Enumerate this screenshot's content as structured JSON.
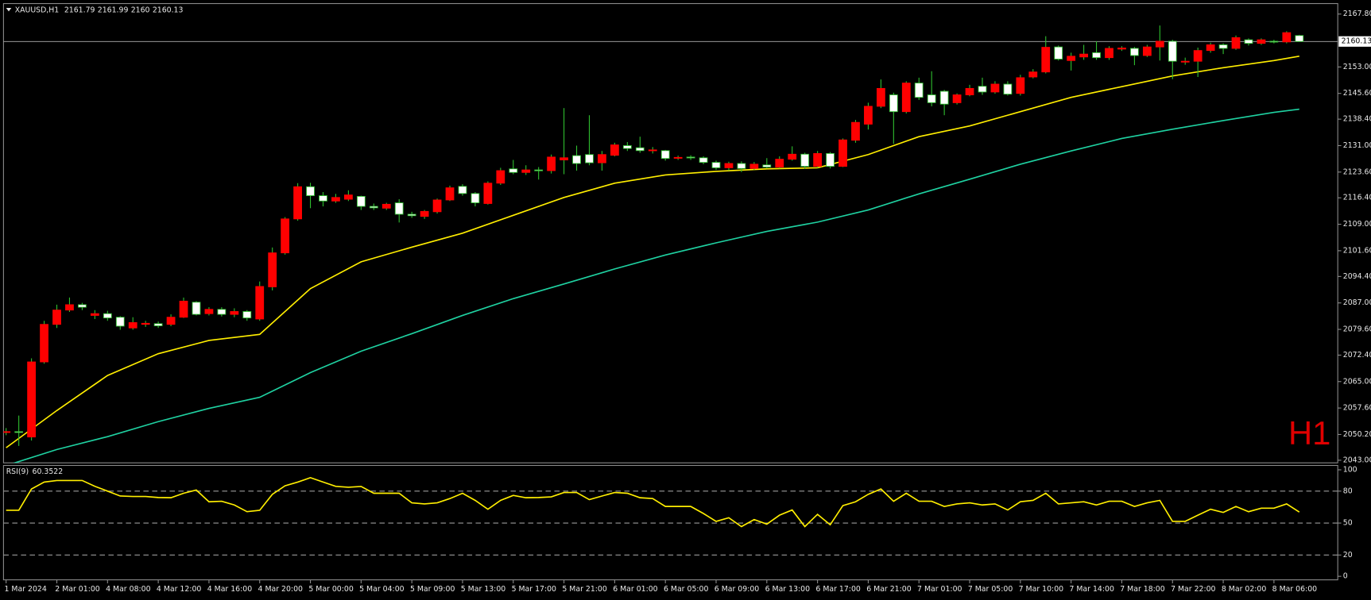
{
  "chart_data": {
    "type": "candlestick",
    "title": "XAUUSD,H1",
    "timeframe_label": "H1",
    "categories": [
      "1 Mar 2024",
      null,
      null,
      null,
      "2 Mar 01:00",
      null,
      null,
      null,
      "4 Mar 08:00",
      null,
      null,
      null,
      "4 Mar 12:00",
      null,
      null,
      null,
      "4 Mar 16:00",
      null,
      null,
      null,
      "4 Mar 20:00",
      null,
      null,
      null,
      "5 Mar 00:00",
      null,
      null,
      null,
      "5 Mar 04:00",
      null,
      null,
      null,
      "5 Mar 09:00",
      null,
      null,
      null,
      "5 Mar 13:00",
      null,
      null,
      null,
      "5 Mar 17:00",
      null,
      null,
      null,
      "5 Mar 21:00",
      null,
      null,
      null,
      "6 Mar 01:00",
      null,
      null,
      null,
      "6 Mar 05:00",
      null,
      null,
      null,
      "6 Mar 09:00",
      null,
      null,
      null,
      "6 Mar 13:00",
      null,
      null,
      null,
      "6 Mar 17:00",
      null,
      null,
      null,
      "6 Mar 21:00",
      null,
      null,
      null,
      "7 Mar 01:00",
      null,
      null,
      null,
      "7 Mar 05:00",
      null,
      null,
      null,
      "7 Mar 10:00",
      null,
      null,
      null,
      "7 Mar 14:00",
      null,
      null,
      null,
      "7 Mar 18:00",
      null,
      null,
      null,
      "7 Mar 22:00",
      null,
      null,
      null,
      "8 Mar 02:00",
      null,
      null,
      null,
      "8 Mar 06:00",
      null,
      null
    ],
    "candles": {
      "open": [
        2050.8,
        2051.0,
        2049.5,
        2070.5,
        2081.0,
        2085.0,
        2086.5,
        2083.5,
        2084.0,
        2083.0,
        2080.0,
        2081.0,
        2081.2,
        2081.0,
        2083.0,
        2087.2,
        2084.0,
        2085.2,
        2083.8,
        2084.6,
        2082.5,
        2091.5,
        2101.0,
        2110.5,
        2119.5,
        2117.0,
        2115.5,
        2116.0,
        2116.8,
        2114.0,
        2113.5,
        2115.0,
        2111.8,
        2111.2,
        2112.5,
        2115.8,
        2119.6,
        2117.6,
        2114.8,
        2120.5,
        2124.5,
        2123.5,
        2124.2,
        2124.0,
        2127.0,
        2128.2,
        2128.5,
        2126.2,
        2128.3,
        2131.0,
        2130.4,
        2129.6,
        2129.6,
        2127.5,
        2127.8,
        2127.6,
        2126.3,
        2124.8,
        2126.0,
        2124.6,
        2125.6,
        2125.0,
        2127.2,
        2128.6,
        2125.2,
        2128.8,
        2125.2,
        2132.5,
        2137.0,
        2142.0,
        2145.2,
        2140.5,
        2148.5,
        2145.2,
        2146.2,
        2143.0,
        2145.2,
        2147.6,
        2146.0,
        2148.2,
        2145.6,
        2150.2,
        2151.6,
        2158.6,
        2154.8,
        2155.8,
        2157.0,
        2155.6,
        2158.0,
        2158.2,
        2156.2,
        2158.6,
        2160.2,
        2154.6,
        2154.6,
        2157.6,
        2159.2,
        2158.2,
        2160.6,
        2159.6,
        2160.2,
        2160.0,
        2161.79
      ],
      "high": [
        2052.0,
        2055.5,
        2071.5,
        2082.0,
        2086.5,
        2088.5,
        2087.0,
        2085.0,
        2084.8,
        2083.3,
        2083.0,
        2082.0,
        2081.8,
        2083.8,
        2088.5,
        2087.5,
        2085.8,
        2085.8,
        2085.5,
        2085.0,
        2093.0,
        2102.5,
        2111.0,
        2120.5,
        2120.6,
        2118.0,
        2117.5,
        2118.5,
        2117.0,
        2114.8,
        2115.0,
        2116.0,
        2112.5,
        2113.0,
        2116.2,
        2119.8,
        2120.2,
        2118.0,
        2121.0,
        2124.8,
        2127.0,
        2125.5,
        2125.0,
        2128.5,
        2141.5,
        2131.0,
        2139.5,
        2129.5,
        2131.8,
        2132.0,
        2133.5,
        2130.6,
        2129.8,
        2128.2,
        2128.3,
        2128.0,
        2126.8,
        2126.5,
        2126.6,
        2126.4,
        2127.5,
        2128.0,
        2130.8,
        2129.0,
        2129.5,
        2129.2,
        2133.0,
        2138.2,
        2143.0,
        2149.5,
        2145.8,
        2149.0,
        2150.0,
        2151.8,
        2146.6,
        2145.6,
        2148.0,
        2150.0,
        2149.0,
        2149.0,
        2150.8,
        2152.4,
        2161.6,
        2159.0,
        2157.0,
        2159.2,
        2160.2,
        2158.8,
        2158.8,
        2158.6,
        2159.2,
        2164.6,
        2160.6,
        2155.6,
        2158.4,
        2159.8,
        2159.6,
        2161.8,
        2161.0,
        2161.0,
        2160.6,
        2163.0,
        2161.99
      ],
      "low": [
        2050.0,
        2047.0,
        2048.5,
        2070.0,
        2080.0,
        2084.5,
        2085.0,
        2082.5,
        2082.0,
        2079.5,
        2079.5,
        2080.3,
        2080.0,
        2080.5,
        2082.8,
        2083.5,
        2083.5,
        2083.2,
        2083.0,
        2082.0,
        2082.0,
        2090.5,
        2100.5,
        2110.0,
        2113.5,
        2114.0,
        2115.0,
        2115.5,
        2113.0,
        2113.0,
        2113.0,
        2109.5,
        2110.8,
        2110.5,
        2112.0,
        2115.5,
        2117.0,
        2114.0,
        2114.5,
        2120.0,
        2123.0,
        2122.8,
        2121.5,
        2123.2,
        2123.0,
        2124.0,
        2125.5,
        2124.0,
        2128.0,
        2129.5,
        2129.0,
        2128.8,
        2126.8,
        2127.0,
        2127.0,
        2125.8,
        2124.2,
        2124.0,
        2123.6,
        2124.2,
        2124.6,
        2124.6,
        2126.8,
        2124.5,
        2124.8,
        2124.6,
        2125.0,
        2131.8,
        2135.5,
        2141.5,
        2131.5,
        2140.0,
        2143.8,
        2142.0,
        2139.5,
        2142.5,
        2144.8,
        2145.2,
        2145.5,
        2145.0,
        2145.0,
        2149.8,
        2151.2,
        2154.8,
        2152.0,
        2155.0,
        2155.0,
        2155.0,
        2157.5,
        2153.5,
        2155.8,
        2154.8,
        2149.6,
        2153.6,
        2150.2,
        2157.0,
        2156.6,
        2157.8,
        2159.0,
        2159.2,
        2159.6,
        2159.6,
        2160.0
      ],
      "close": [
        2051.0,
        2050.8,
        2070.5,
        2081.0,
        2085.0,
        2086.5,
        2085.8,
        2084.0,
        2082.8,
        2080.5,
        2081.5,
        2081.3,
        2080.6,
        2083.0,
        2087.5,
        2083.8,
        2085.2,
        2083.8,
        2084.6,
        2082.8,
        2091.6,
        2101.0,
        2110.5,
        2119.5,
        2117.0,
        2115.5,
        2116.5,
        2117.2,
        2114.0,
        2113.6,
        2114.6,
        2111.8,
        2111.4,
        2112.6,
        2115.8,
        2119.2,
        2117.6,
        2115.0,
        2120.5,
        2124.0,
        2123.5,
        2124.2,
        2124.0,
        2127.8,
        2127.6,
        2126.0,
        2126.2,
        2128.5,
        2131.2,
        2130.2,
        2129.6,
        2129.8,
        2127.4,
        2127.7,
        2127.6,
        2126.3,
        2124.8,
        2126.0,
        2124.6,
        2125.8,
        2125.0,
        2127.2,
        2128.6,
        2125.2,
        2128.8,
        2125.2,
        2132.6,
        2137.5,
        2142.0,
        2147.0,
        2140.5,
        2148.5,
        2144.5,
        2143.0,
        2142.6,
        2145.2,
        2147.0,
        2146.0,
        2148.2,
        2145.4,
        2150.0,
        2151.6,
        2158.5,
        2155.2,
        2156.0,
        2156.6,
        2155.6,
        2158.2,
        2158.3,
        2156.2,
        2158.6,
        2160.2,
        2154.6,
        2154.6,
        2157.6,
        2159.2,
        2158.2,
        2161.2,
        2159.6,
        2160.6,
        2160.0,
        2162.6,
        2160.13
      ]
    },
    "up_color": "#ff0000",
    "down_color": "#ffffff",
    "wick_color": "#2fbf2f",
    "background": "#000000",
    "ylim": [
      2042.27,
      2170.73
    ],
    "yticks": [
      {
        "value": 2167.8,
        "label": "2167.80"
      },
      {
        "value": 2153.0,
        "label": "2153.00"
      },
      {
        "value": 2145.6,
        "label": "2145.60"
      },
      {
        "value": 2138.4,
        "label": "2138.40"
      },
      {
        "value": 2131.0,
        "label": "2131.00"
      },
      {
        "value": 2123.6,
        "label": "2123.60"
      },
      {
        "value": 2116.4,
        "label": "2116.40"
      },
      {
        "value": 2109.0,
        "label": "2109.00"
      },
      {
        "value": 2101.6,
        "label": "2101.60"
      },
      {
        "value": 2094.4,
        "label": "2094.40"
      },
      {
        "value": 2087.0,
        "label": "2087.00"
      },
      {
        "value": 2079.6,
        "label": "2079.60"
      },
      {
        "value": 2072.4,
        "label": "2072.40"
      },
      {
        "value": 2065.0,
        "label": "2065.00"
      },
      {
        "value": 2057.6,
        "label": "2057.60"
      },
      {
        "value": 2050.2,
        "label": "2050.20"
      },
      {
        "value": 2043.0,
        "label": "2043.00"
      }
    ],
    "current_price_line": true,
    "moving_averages": [
      {
        "color": "#ffee00",
        "x": [
          0,
          4,
          8,
          12,
          16,
          20,
          24,
          28,
          32,
          36,
          40,
          44,
          48,
          52,
          56,
          60,
          64,
          68,
          72,
          76,
          80,
          84,
          88,
          92,
          96,
          100,
          102
        ],
        "values": [
          2046.5,
          2056.9,
          2066.7,
          2072.8,
          2076.5,
          2078.2,
          2091.0,
          2098.5,
          2102.6,
          2106.5,
          2111.5,
          2116.5,
          2120.5,
          2122.8,
          2123.8,
          2124.5,
          2124.8,
          2128.5,
          2133.5,
          2136.5,
          2140.5,
          2144.5,
          2147.5,
          2150.5,
          2152.8,
          2154.8,
          2156.0
        ]
      },
      {
        "color": "#1fd1a1",
        "x": [
          0,
          4,
          8,
          12,
          16,
          20,
          24,
          28,
          32,
          36,
          40,
          44,
          48,
          52,
          56,
          60,
          64,
          68,
          72,
          76,
          80,
          84,
          88,
          92,
          96,
          100,
          102
        ],
        "values": [
          2041.5,
          2046.0,
          2049.6,
          2053.8,
          2057.5,
          2060.6,
          2067.5,
          2073.5,
          2078.4,
          2083.5,
          2088.2,
          2092.3,
          2096.5,
          2100.4,
          2103.8,
          2107.0,
          2109.6,
          2113.0,
          2117.5,
          2121.6,
          2125.8,
          2129.5,
          2133.0,
          2135.6,
          2138.0,
          2140.3,
          2141.2
        ]
      }
    ],
    "rsi": {
      "title": "RSI(9)",
      "color": "#ffee00",
      "values": [
        62,
        62,
        82,
        88.5,
        90,
        90,
        90,
        84.5,
        80,
        75.4,
        75,
        75,
        74,
        73.8,
        78,
        81,
        70,
        70.5,
        67,
        60.7,
        62,
        77,
        85,
        88.5,
        92.6,
        88.5,
        84.5,
        83.6,
        84.4,
        78,
        78,
        78,
        69,
        68,
        69,
        73,
        78,
        71.3,
        63,
        71.3,
        76,
        73.8,
        74,
        74.6,
        78.7,
        78.7,
        72,
        75.4,
        78.7,
        78,
        73.8,
        73,
        65.6,
        65.6,
        65.6,
        59,
        51.6,
        55,
        46.7,
        53.3,
        49,
        57.4,
        62.3,
        46.7,
        58.2,
        48.4,
        66.4,
        70,
        77,
        82,
        70.5,
        78,
        70.5,
        70.5,
        65.6,
        68,
        69,
        67,
        68,
        62.3,
        70,
        71.3,
        78,
        68,
        69,
        70,
        67,
        70.5,
        70.5,
        65.6,
        69,
        71.3,
        51.6,
        51.6,
        57.4,
        63,
        60,
        65.6,
        60.7,
        64,
        64,
        68,
        60.3522
      ],
      "ylim": [
        -3.3,
        104.1
      ],
      "yticks": [
        0,
        20,
        50,
        80,
        100
      ],
      "levels": [
        20,
        50,
        80
      ]
    }
  }
}
